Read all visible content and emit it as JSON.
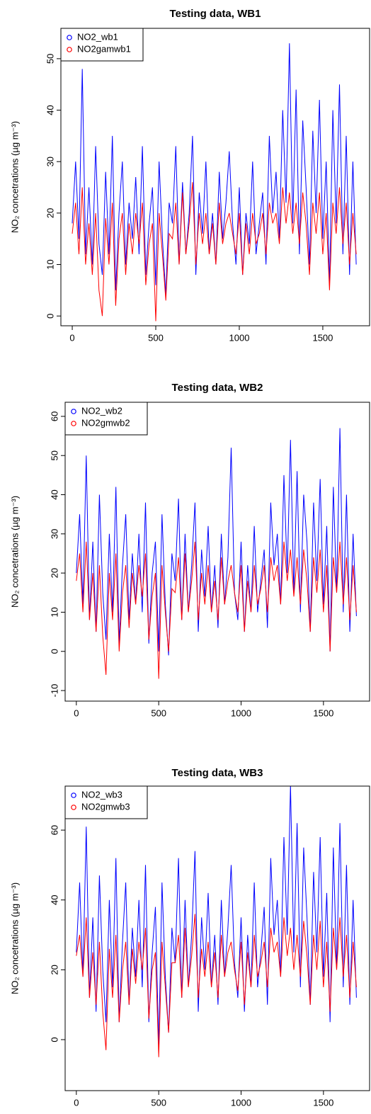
{
  "chart_data": [
    {
      "type": "line",
      "title": "Testing data, WB1",
      "ylabel": "NO₂ concetrations (µg m⁻³)",
      "legend": "topleft",
      "x": [
        0,
        20,
        40,
        60,
        80,
        100,
        120,
        140,
        160,
        180,
        200,
        220,
        240,
        260,
        280,
        300,
        320,
        340,
        360,
        380,
        400,
        420,
        440,
        460,
        480,
        500,
        520,
        540,
        560,
        580,
        600,
        620,
        640,
        660,
        680,
        700,
        720,
        740,
        760,
        780,
        800,
        820,
        840,
        860,
        880,
        900,
        920,
        940,
        960,
        980,
        1000,
        1020,
        1040,
        1060,
        1080,
        1100,
        1120,
        1140,
        1160,
        1180,
        1200,
        1220,
        1240,
        1260,
        1280,
        1300,
        1320,
        1340,
        1360,
        1380,
        1400,
        1420,
        1440,
        1460,
        1480,
        1500,
        1520,
        1540,
        1560,
        1580,
        1600,
        1620,
        1640,
        1660,
        1680,
        1700
      ],
      "series": [
        {
          "name": "NO2_wb1",
          "color": "#0000ff",
          "values": [
            18,
            30,
            15,
            48,
            12,
            25,
            10,
            33,
            14,
            8,
            28,
            12,
            35,
            5,
            20,
            30,
            10,
            22,
            15,
            27,
            12,
            33,
            8,
            18,
            25,
            6,
            30,
            15,
            4,
            22,
            18,
            33,
            10,
            26,
            12,
            20,
            35,
            8,
            24,
            16,
            30,
            12,
            20,
            10,
            28,
            15,
            22,
            32,
            18,
            10,
            25,
            8,
            20,
            14,
            30,
            12,
            18,
            24,
            10,
            35,
            20,
            28,
            15,
            40,
            22,
            53,
            18,
            44,
            12,
            38,
            25,
            10,
            36,
            20,
            42,
            15,
            30,
            6,
            40,
            18,
            45,
            12,
            35,
            8,
            30,
            10
          ]
        },
        {
          "name": "NO2gamwb1",
          "color": "#ff0000",
          "values": [
            16,
            22,
            12,
            25,
            10,
            18,
            8,
            20,
            5,
            0,
            19,
            10,
            22,
            2,
            15,
            20,
            8,
            18,
            12,
            20,
            14,
            22,
            6,
            14,
            18,
            -1,
            20,
            12,
            3,
            16,
            15,
            22,
            10,
            24,
            12,
            18,
            26,
            10,
            20,
            14,
            20,
            12,
            18,
            10,
            22,
            14,
            18,
            20,
            16,
            12,
            20,
            8,
            18,
            12,
            20,
            14,
            16,
            20,
            12,
            22,
            18,
            20,
            14,
            25,
            18,
            24,
            16,
            22,
            14,
            24,
            18,
            8,
            22,
            16,
            24,
            12,
            20,
            5,
            22,
            16,
            25,
            14,
            22,
            10,
            20,
            12
          ]
        }
      ],
      "xlim": [
        -68,
        1780
      ],
      "xticks": [
        0,
        500,
        1000,
        1500
      ],
      "ylim": [
        -1.9,
        55.9
      ],
      "yticks": [
        0,
        10,
        20,
        30,
        40,
        50
      ]
    },
    {
      "type": "line",
      "title": "Testing data, WB2",
      "ylabel": "NO₂ concetrations (µg m⁻³)",
      "legend": "topleft",
      "x": [
        0,
        20,
        40,
        60,
        80,
        100,
        120,
        140,
        160,
        180,
        200,
        220,
        240,
        260,
        280,
        300,
        320,
        340,
        360,
        380,
        400,
        420,
        440,
        460,
        480,
        500,
        520,
        540,
        560,
        580,
        600,
        620,
        640,
        660,
        680,
        700,
        720,
        740,
        760,
        780,
        800,
        820,
        840,
        860,
        880,
        900,
        920,
        940,
        960,
        980,
        1000,
        1020,
        1040,
        1060,
        1080,
        1100,
        1120,
        1140,
        1160,
        1180,
        1200,
        1220,
        1240,
        1260,
        1280,
        1300,
        1320,
        1340,
        1360,
        1380,
        1400,
        1420,
        1440,
        1460,
        1480,
        1500,
        1520,
        1540,
        1560,
        1580,
        1600,
        1620,
        1640,
        1660,
        1680,
        1700
      ],
      "series": [
        {
          "name": "NO2_wb2",
          "color": "#0000ff",
          "values": [
            20,
            35,
            12,
            50,
            8,
            28,
            5,
            40,
            15,
            3,
            30,
            10,
            42,
            2,
            22,
            35,
            8,
            25,
            12,
            30,
            10,
            38,
            2,
            20,
            28,
            0,
            35,
            12,
            -1,
            25,
            18,
            39,
            8,
            30,
            10,
            22,
            38,
            5,
            26,
            14,
            32,
            10,
            22,
            6,
            30,
            12,
            24,
            52,
            15,
            8,
            28,
            5,
            22,
            10,
            32,
            10,
            18,
            26,
            6,
            38,
            22,
            30,
            12,
            45,
            20,
            54,
            15,
            46,
            10,
            40,
            28,
            5,
            38,
            18,
            44,
            12,
            32,
            0,
            42,
            15,
            57,
            10,
            40,
            5,
            30,
            9
          ]
        },
        {
          "name": "NO2gmwb2",
          "color": "#ff0000",
          "values": [
            18,
            25,
            10,
            28,
            8,
            20,
            5,
            22,
            4,
            -6,
            20,
            8,
            25,
            0,
            15,
            22,
            6,
            20,
            12,
            22,
            14,
            25,
            3,
            14,
            20,
            -7,
            22,
            10,
            0,
            16,
            15,
            24,
            8,
            25,
            10,
            18,
            28,
            8,
            20,
            12,
            22,
            10,
            18,
            8,
            24,
            12,
            18,
            22,
            15,
            10,
            22,
            5,
            18,
            10,
            22,
            12,
            16,
            22,
            10,
            24,
            18,
            22,
            12,
            28,
            18,
            26,
            14,
            24,
            12,
            26,
            18,
            5,
            24,
            15,
            26,
            10,
            22,
            0,
            24,
            15,
            28,
            12,
            24,
            8,
            22,
            10
          ]
        }
      ],
      "xlim": [
        -68,
        1780
      ],
      "xticks": [
        0,
        500,
        1000,
        1500
      ],
      "ylim": [
        -12.7,
        63.6
      ],
      "yticks": [
        -10,
        0,
        10,
        20,
        30,
        40,
        50,
        60
      ]
    },
    {
      "type": "line",
      "title": "Testing data, WB3",
      "ylabel": "NO₂ concetrations (µg m⁻³)",
      "legend": "topleft",
      "x": [
        0,
        20,
        40,
        60,
        80,
        100,
        120,
        140,
        160,
        180,
        200,
        220,
        240,
        260,
        280,
        300,
        320,
        340,
        360,
        380,
        400,
        420,
        440,
        460,
        480,
        500,
        520,
        540,
        560,
        580,
        600,
        620,
        640,
        660,
        680,
        700,
        720,
        740,
        760,
        780,
        800,
        820,
        840,
        860,
        880,
        900,
        920,
        940,
        960,
        980,
        1000,
        1020,
        1040,
        1060,
        1080,
        1100,
        1120,
        1140,
        1160,
        1180,
        1200,
        1220,
        1240,
        1260,
        1280,
        1300,
        1320,
        1340,
        1360,
        1380,
        1400,
        1420,
        1440,
        1460,
        1480,
        1500,
        1520,
        1540,
        1560,
        1580,
        1600,
        1620,
        1640,
        1660,
        1680,
        1700
      ],
      "series": [
        {
          "name": "NO2_wb3",
          "color": "#0000ff",
          "values": [
            25,
            45,
            18,
            61,
            12,
            35,
            8,
            47,
            20,
            5,
            40,
            15,
            52,
            5,
            28,
            45,
            10,
            32,
            18,
            40,
            15,
            50,
            5,
            25,
            38,
            -2,
            45,
            18,
            2,
            32,
            22,
            52,
            12,
            40,
            15,
            30,
            54,
            8,
            35,
            20,
            42,
            15,
            30,
            10,
            40,
            18,
            32,
            50,
            22,
            12,
            35,
            8,
            30,
            15,
            45,
            15,
            25,
            38,
            10,
            52,
            30,
            40,
            18,
            58,
            30,
            73,
            25,
            62,
            15,
            55,
            35,
            10,
            48,
            25,
            58,
            18,
            42,
            5,
            55,
            20,
            62,
            15,
            50,
            10,
            40,
            12
          ]
        },
        {
          "name": "NO2gmwb3",
          "color": "#ff0000",
          "values": [
            24,
            30,
            18,
            35,
            12,
            25,
            10,
            28,
            8,
            -3,
            26,
            12,
            30,
            5,
            20,
            28,
            10,
            26,
            16,
            28,
            20,
            32,
            6,
            20,
            25,
            -5,
            28,
            15,
            2,
            22,
            22,
            30,
            12,
            32,
            15,
            24,
            36,
            12,
            26,
            18,
            28,
            15,
            25,
            12,
            30,
            18,
            25,
            28,
            20,
            14,
            28,
            10,
            25,
            15,
            30,
            18,
            22,
            28,
            15,
            32,
            25,
            28,
            18,
            35,
            24,
            32,
            20,
            30,
            18,
            34,
            24,
            10,
            30,
            20,
            34,
            15,
            28,
            8,
            32,
            20,
            35,
            18,
            30,
            12,
            28,
            15
          ]
        }
      ],
      "xlim": [
        -68,
        1780
      ],
      "xticks": [
        0,
        500,
        1000,
        1500
      ],
      "ylim": [
        -14.6,
        72.6
      ],
      "yticks": [
        0,
        20,
        40,
        60
      ]
    }
  ]
}
